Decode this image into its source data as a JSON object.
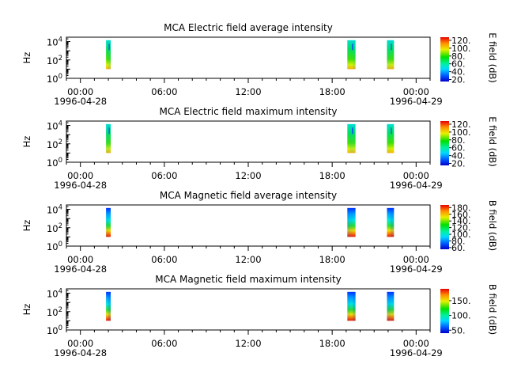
{
  "chart_data": [
    {
      "type": "heatmap",
      "title": "MCA  Electric field average intensity",
      "ylabel": "Hz",
      "yscale": "log",
      "ylim": [
        1,
        30000
      ],
      "yticks": [
        {
          "base": "10",
          "exp": "0"
        },
        {
          "base": "10",
          "exp": "2"
        },
        {
          "base": "10",
          "exp": "4"
        }
      ],
      "xticks": [
        "00:00",
        "06:00",
        "12:00",
        "18:00",
        "00:00"
      ],
      "xlim": [
        "1996-04-27 23:00",
        "1996-04-29 01:00"
      ],
      "date_labels": [
        "1996-04-28",
        "1996-04-29"
      ],
      "colorbar": {
        "label": "E field (dB)",
        "ticks": [
          "20.",
          "40.",
          "60.",
          "80.",
          "100.",
          "120."
        ],
        "range": [
          15,
          128
        ]
      },
      "data_blocks": [
        {
          "start": "01:50",
          "end": "02:10",
          "freq_range": [
            10,
            14000
          ]
        },
        {
          "start": "19:05",
          "end": "19:40",
          "freq_range": [
            10,
            14000
          ]
        },
        {
          "start": "21:55",
          "end": "22:25",
          "freq_range": [
            10,
            14000
          ]
        }
      ]
    },
    {
      "type": "heatmap",
      "title": "MCA  Electric field maximum intensity",
      "ylabel": "Hz",
      "yscale": "log",
      "ylim": [
        1,
        30000
      ],
      "yticks": [
        {
          "base": "10",
          "exp": "0"
        },
        {
          "base": "10",
          "exp": "2"
        },
        {
          "base": "10",
          "exp": "4"
        }
      ],
      "xticks": [
        "00:00",
        "06:00",
        "12:00",
        "18:00",
        "00:00"
      ],
      "xlim": [
        "1996-04-27 23:00",
        "1996-04-29 01:00"
      ],
      "date_labels": [
        "1996-04-28",
        "1996-04-29"
      ],
      "colorbar": {
        "label": "E field (dB)",
        "ticks": [
          "20.",
          "40.",
          "60.",
          "80.",
          "100.",
          "120."
        ],
        "range": [
          15,
          128
        ]
      },
      "data_blocks": [
        {
          "start": "01:50",
          "end": "02:10",
          "freq_range": [
            10,
            14000
          ]
        },
        {
          "start": "19:05",
          "end": "19:40",
          "freq_range": [
            10,
            14000
          ]
        },
        {
          "start": "21:55",
          "end": "22:25",
          "freq_range": [
            10,
            14000
          ]
        }
      ]
    },
    {
      "type": "heatmap",
      "title": "MCA  Magnetic field average intensity",
      "ylabel": "Hz",
      "yscale": "log",
      "ylim": [
        1,
        30000
      ],
      "yticks": [
        {
          "base": "10",
          "exp": "0"
        },
        {
          "base": "10",
          "exp": "2"
        },
        {
          "base": "10",
          "exp": "4"
        }
      ],
      "xticks": [
        "00:00",
        "06:00",
        "12:00",
        "18:00",
        "00:00"
      ],
      "xlim": [
        "1996-04-27 23:00",
        "1996-04-29 01:00"
      ],
      "date_labels": [
        "1996-04-28",
        "1996-04-29"
      ],
      "colorbar": {
        "label": "B field (dB)",
        "ticks": [
          "60.",
          "80.",
          "100.",
          "120.",
          "140.",
          "160.",
          "180."
        ],
        "range": [
          55,
          188
        ]
      },
      "data_blocks": [
        {
          "start": "01:50",
          "end": "02:10",
          "freq_range": [
            10,
            14000
          ]
        },
        {
          "start": "19:05",
          "end": "19:40",
          "freq_range": [
            10,
            14000
          ]
        },
        {
          "start": "21:55",
          "end": "22:25",
          "freq_range": [
            10,
            14000
          ]
        }
      ]
    },
    {
      "type": "heatmap",
      "title": "MCA  Magnetic field maximum intensity",
      "ylabel": "Hz",
      "yscale": "log",
      "ylim": [
        1,
        30000
      ],
      "yticks": [
        {
          "base": "10",
          "exp": "0"
        },
        {
          "base": "10",
          "exp": "2"
        },
        {
          "base": "10",
          "exp": "4"
        }
      ],
      "xticks": [
        "00:00",
        "06:00",
        "12:00",
        "18:00",
        "00:00"
      ],
      "xlim": [
        "1996-04-27 23:00",
        "1996-04-29 01:00"
      ],
      "date_labels": [
        "1996-04-28",
        "1996-04-29"
      ],
      "colorbar": {
        "label": "B field (dB)",
        "ticks": [
          "50.",
          "100.",
          "150."
        ],
        "range": [
          40,
          190
        ]
      },
      "data_blocks": [
        {
          "start": "01:50",
          "end": "02:10",
          "freq_range": [
            10,
            14000
          ]
        },
        {
          "start": "19:05",
          "end": "19:40",
          "freq_range": [
            10,
            14000
          ]
        },
        {
          "start": "21:55",
          "end": "22:25",
          "freq_range": [
            10,
            14000
          ]
        }
      ]
    }
  ]
}
